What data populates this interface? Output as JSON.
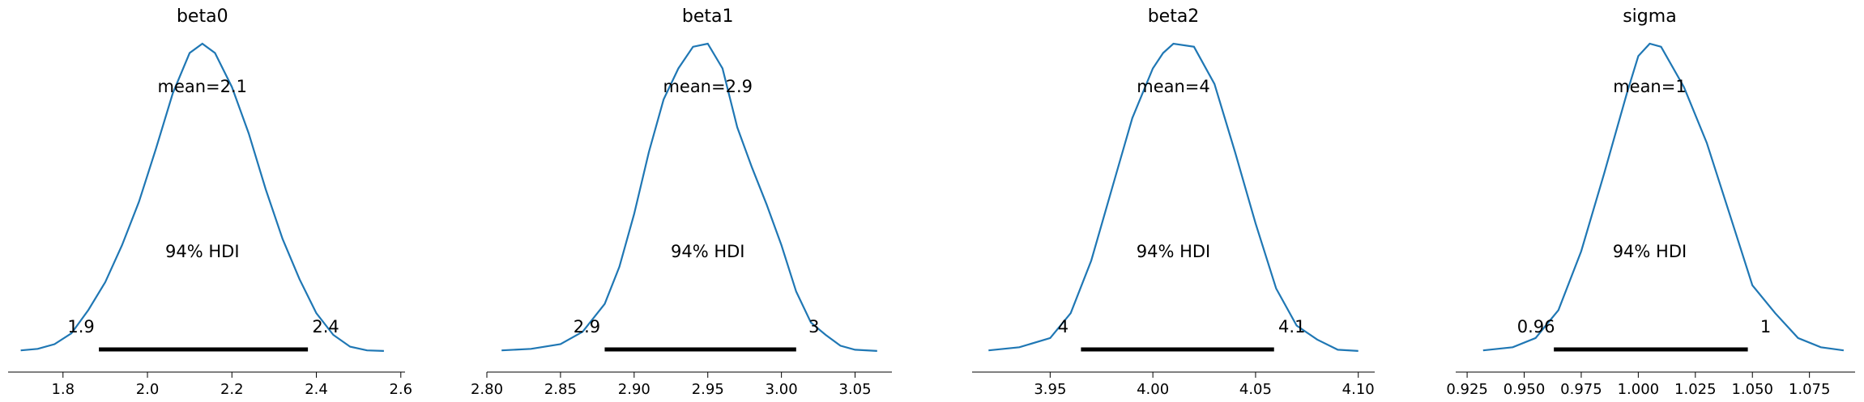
{
  "chart_data": [
    {
      "type": "density",
      "title": "beta0",
      "xlim": [
        1.67,
        2.61
      ],
      "x_ticks": [
        1.8,
        2.0,
        2.2,
        2.4,
        2.6
      ],
      "x_tick_labels": [
        "1.8",
        "2.0",
        "2.2",
        "2.4",
        "2.6"
      ],
      "mean_label": "mean=2.1",
      "hdi_label": "94% HDI",
      "hdi": [
        1.885,
        2.38
      ],
      "hdi_low_label": "1.9",
      "hdi_high_label": "2.4",
      "density": [
        [
          1.7,
          0.01
        ],
        [
          1.74,
          0.015
        ],
        [
          1.78,
          0.03
        ],
        [
          1.82,
          0.065
        ],
        [
          1.86,
          0.14
        ],
        [
          1.9,
          0.23
        ],
        [
          1.94,
          0.35
        ],
        [
          1.98,
          0.49
        ],
        [
          2.02,
          0.66
        ],
        [
          2.06,
          0.84
        ],
        [
          2.1,
          0.97
        ],
        [
          2.13,
          1.0
        ],
        [
          2.16,
          0.97
        ],
        [
          2.2,
          0.86
        ],
        [
          2.24,
          0.71
        ],
        [
          2.28,
          0.53
        ],
        [
          2.32,
          0.37
        ],
        [
          2.36,
          0.24
        ],
        [
          2.4,
          0.13
        ],
        [
          2.44,
          0.06
        ],
        [
          2.48,
          0.022
        ],
        [
          2.52,
          0.01
        ],
        [
          2.56,
          0.008
        ]
      ]
    },
    {
      "type": "density",
      "title": "beta1",
      "xlim": [
        2.8,
        3.075
      ],
      "x_ticks": [
        2.8,
        2.85,
        2.9,
        2.95,
        3.0,
        3.05
      ],
      "x_tick_labels": [
        "2.80",
        "2.85",
        "2.90",
        "2.95",
        "3.00",
        "3.05"
      ],
      "mean_label": "mean=2.9",
      "hdi_label": "94% HDI",
      "hdi": [
        2.88,
        3.01
      ],
      "hdi_low_label": "2.9",
      "hdi_high_label": "3",
      "density": [
        [
          2.81,
          0.01
        ],
        [
          2.83,
          0.015
        ],
        [
          2.85,
          0.03
        ],
        [
          2.865,
          0.07
        ],
        [
          2.88,
          0.16
        ],
        [
          2.89,
          0.28
        ],
        [
          2.9,
          0.45
        ],
        [
          2.91,
          0.65
        ],
        [
          2.92,
          0.82
        ],
        [
          2.93,
          0.92
        ],
        [
          2.94,
          0.99
        ],
        [
          2.95,
          1.0
        ],
        [
          2.96,
          0.92
        ],
        [
          2.97,
          0.73
        ],
        [
          2.98,
          0.6
        ],
        [
          2.99,
          0.48
        ],
        [
          3.0,
          0.35
        ],
        [
          3.01,
          0.2
        ],
        [
          3.02,
          0.1
        ],
        [
          3.03,
          0.06
        ],
        [
          3.04,
          0.025
        ],
        [
          3.05,
          0.012
        ],
        [
          3.065,
          0.008
        ]
      ]
    },
    {
      "type": "density",
      "title": "beta2",
      "xlim": [
        3.912,
        4.108
      ],
      "x_ticks": [
        3.95,
        4.0,
        4.05,
        4.1
      ],
      "x_tick_labels": [
        "3.95",
        "4.00",
        "4.05",
        "4.10"
      ],
      "mean_label": "mean=4",
      "hdi_label": "94% HDI",
      "hdi": [
        3.965,
        4.059
      ],
      "hdi_low_label": "4",
      "hdi_high_label": "4.1",
      "density": [
        [
          3.92,
          0.01
        ],
        [
          3.935,
          0.02
        ],
        [
          3.95,
          0.05
        ],
        [
          3.96,
          0.13
        ],
        [
          3.97,
          0.3
        ],
        [
          3.98,
          0.53
        ],
        [
          3.99,
          0.76
        ],
        [
          4.0,
          0.92
        ],
        [
          4.005,
          0.97
        ],
        [
          4.01,
          1.0
        ],
        [
          4.02,
          0.99
        ],
        [
          4.03,
          0.87
        ],
        [
          4.04,
          0.65
        ],
        [
          4.05,
          0.42
        ],
        [
          4.06,
          0.21
        ],
        [
          4.07,
          0.09
        ],
        [
          4.08,
          0.045
        ],
        [
          4.09,
          0.012
        ],
        [
          4.1,
          0.008
        ]
      ]
    },
    {
      "type": "density",
      "title": "sigma",
      "xlim": [
        0.92,
        1.095
      ],
      "x_ticks": [
        0.925,
        0.95,
        0.975,
        1.0,
        1.025,
        1.05,
        1.075
      ],
      "x_tick_labels": [
        "0.925",
        "0.950",
        "0.975",
        "1.000",
        "1.025",
        "1.050",
        "1.075"
      ],
      "mean_label": "mean=1",
      "hdi_label": "94% HDI",
      "hdi": [
        0.963,
        1.048
      ],
      "hdi_low_label": "0.96",
      "hdi_high_label": "1",
      "density": [
        [
          0.932,
          0.01
        ],
        [
          0.945,
          0.02
        ],
        [
          0.955,
          0.05
        ],
        [
          0.965,
          0.14
        ],
        [
          0.975,
          0.33
        ],
        [
          0.985,
          0.58
        ],
        [
          0.995,
          0.84
        ],
        [
          1.0,
          0.96
        ],
        [
          1.005,
          1.0
        ],
        [
          1.01,
          0.99
        ],
        [
          1.02,
          0.86
        ],
        [
          1.03,
          0.68
        ],
        [
          1.04,
          0.45
        ],
        [
          1.05,
          0.22
        ],
        [
          1.06,
          0.13
        ],
        [
          1.07,
          0.05
        ],
        [
          1.08,
          0.02
        ],
        [
          1.09,
          0.01
        ]
      ]
    }
  ]
}
